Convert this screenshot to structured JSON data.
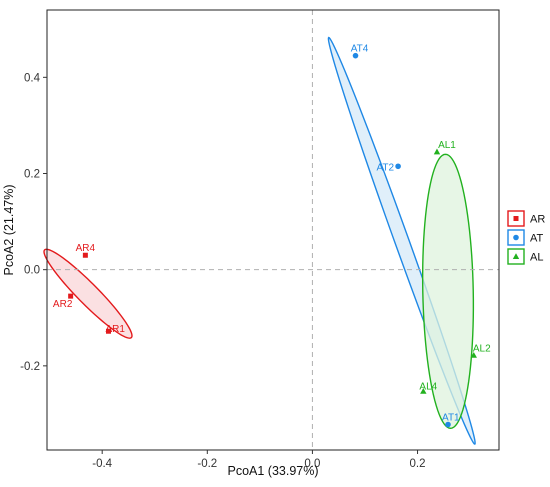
{
  "chart_data": {
    "type": "scatter",
    "title": "",
    "xlabel": "PcoA1 (33.97%)",
    "ylabel": "PcoA2 (21.47%)",
    "xlim": [
      -0.505,
      0.355
    ],
    "ylim": [
      -0.375,
      0.54
    ],
    "xticks": [
      -0.4,
      -0.2,
      0.0,
      0.2
    ],
    "yticks": [
      -0.2,
      0.0,
      0.2,
      0.4
    ],
    "xtick_labels": [
      "-0.4",
      "-0.2",
      "0.0",
      "0.2"
    ],
    "ytick_labels": [
      "-0.2",
      "0.0",
      "0.2",
      "0.4"
    ],
    "grid": false,
    "reference_lines": {
      "x": 0,
      "y": 0
    },
    "legend_position": "right",
    "groups": [
      {
        "name": "AR",
        "color": "#e31a1c",
        "fill": "#f9d6d8",
        "marker": "square",
        "points": [
          {
            "label": "AR4",
            "x": -0.432,
            "y": 0.03
          },
          {
            "label": "AR2",
            "x": -0.46,
            "y": -0.055
          },
          {
            "label": "AR1",
            "x": -0.388,
            "y": -0.128
          }
        ],
        "ellipse": {
          "cx": -0.427,
          "cy": -0.05,
          "axis_major": 0.123,
          "axis_minor": 0.0205,
          "angle_deg": -48
        }
      },
      {
        "name": "AT",
        "color": "#1f88e5",
        "fill": "#d6eaf8",
        "marker": "circle",
        "points": [
          {
            "label": "AT4",
            "x": 0.082,
            "y": 0.445
          },
          {
            "label": "AT2",
            "x": 0.163,
            "y": 0.215
          },
          {
            "label": "AT1",
            "x": 0.258,
            "y": -0.322
          }
        ],
        "ellipse": {
          "cx": 0.17,
          "cy": 0.06,
          "axis_major": 0.445,
          "axis_minor": 0.0135,
          "angle_deg": -71.8
        }
      },
      {
        "name": "AL",
        "color": "#22b11f",
        "fill": "#dff3dd",
        "marker": "triangle",
        "points": [
          {
            "label": "AL1",
            "x": 0.237,
            "y": 0.245
          },
          {
            "label": "AL2",
            "x": 0.307,
            "y": -0.178
          },
          {
            "label": "AL4",
            "x": 0.211,
            "y": -0.253
          }
        ],
        "ellipse": {
          "cx": 0.258,
          "cy": -0.045,
          "axis_major": 0.285,
          "axis_minor": 0.048,
          "angle_deg": -89
        }
      }
    ]
  }
}
